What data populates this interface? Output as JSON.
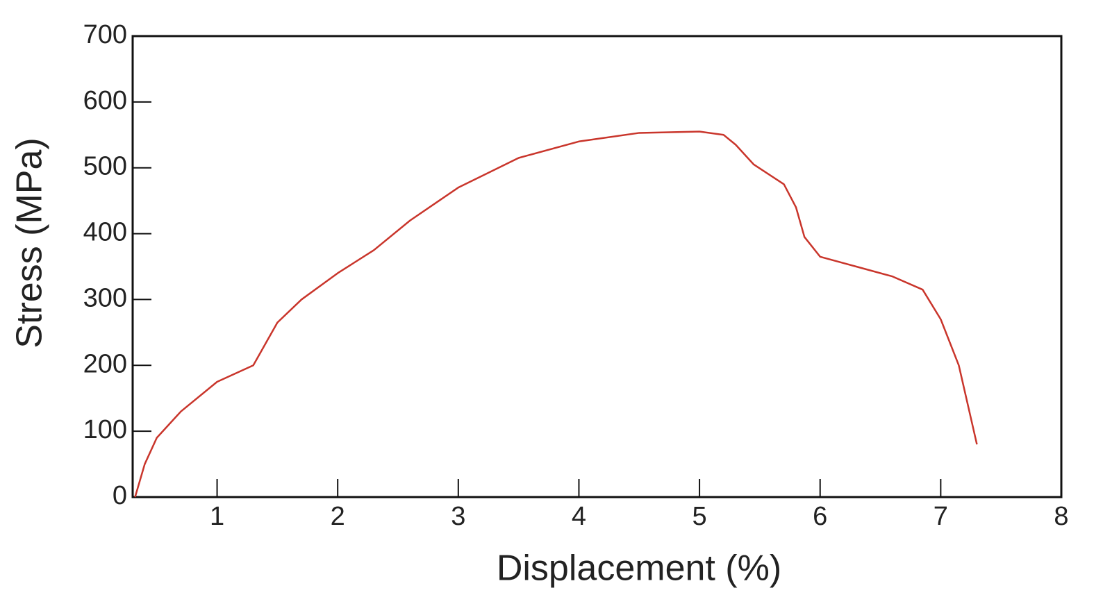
{
  "chart_data": {
    "type": "line",
    "xlabel": "Displacement (%)",
    "ylabel": "Stress (MPa)",
    "x": [
      0.32,
      0.4,
      0.5,
      0.7,
      1.0,
      1.3,
      1.5,
      1.7,
      2.0,
      2.3,
      2.6,
      3.0,
      3.5,
      4.0,
      4.5,
      5.0,
      5.2,
      5.3,
      5.45,
      5.7,
      5.8,
      5.87,
      6.0,
      6.3,
      6.6,
      6.85,
      7.0,
      7.15,
      7.3
    ],
    "series": [
      {
        "color": "#c9352b",
        "values": [
          0,
          50,
          90,
          130,
          175,
          200,
          265,
          300,
          340,
          375,
          420,
          470,
          515,
          540,
          553,
          555,
          550,
          535,
          505,
          475,
          440,
          395,
          365,
          350,
          335,
          315,
          270,
          200,
          80
        ]
      }
    ],
    "xlim": [
      0.3,
      8
    ],
    "xticks": [
      1,
      2,
      3,
      4,
      5,
      6,
      7,
      8
    ],
    "ylim": [
      0,
      700
    ],
    "yticks": [
      0,
      100,
      200,
      300,
      400,
      500,
      600,
      700
    ]
  }
}
